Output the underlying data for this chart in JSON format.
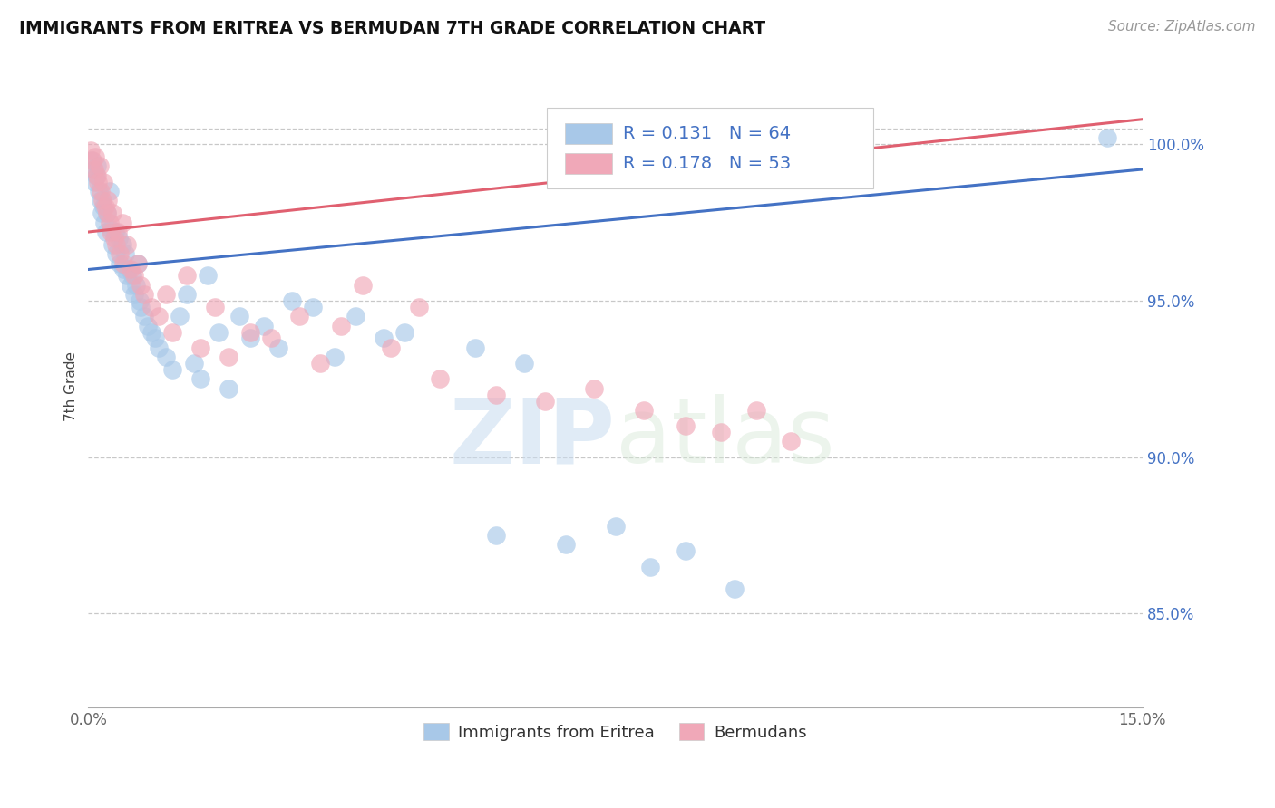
{
  "title": "IMMIGRANTS FROM ERITREA VS BERMUDAN 7TH GRADE CORRELATION CHART",
  "source_text": "Source: ZipAtlas.com",
  "ylabel": "7th Grade",
  "xmin": 0.0,
  "xmax": 15.0,
  "ymin": 82.0,
  "ymax": 102.5,
  "yticks": [
    85.0,
    90.0,
    95.0,
    100.0
  ],
  "ytick_labels": [
    "85.0%",
    "90.0%",
    "95.0%",
    "100.0%"
  ],
  "blue_color": "#A8C8E8",
  "pink_color": "#F0A8B8",
  "blue_line_color": "#4472C4",
  "pink_line_color": "#E06070",
  "R_blue": 0.131,
  "N_blue": 64,
  "R_pink": 0.178,
  "N_pink": 53,
  "legend_blue_label": "Immigrants from Eritrea",
  "legend_pink_label": "Bermudans",
  "watermark_zip": "ZIP",
  "watermark_atlas": "atlas",
  "blue_line_y0": 96.0,
  "blue_line_y1": 99.2,
  "pink_line_y0": 97.2,
  "pink_line_y1": 100.8,
  "blue_x": [
    0.05,
    0.07,
    0.09,
    0.11,
    0.13,
    0.15,
    0.17,
    0.19,
    0.21,
    0.23,
    0.25,
    0.27,
    0.3,
    0.32,
    0.35,
    0.38,
    0.4,
    0.43,
    0.45,
    0.48,
    0.5,
    0.53,
    0.55,
    0.58,
    0.6,
    0.63,
    0.65,
    0.68,
    0.7,
    0.73,
    0.75,
    0.8,
    0.85,
    0.9,
    0.95,
    1.0,
    1.1,
    1.2,
    1.3,
    1.4,
    1.5,
    1.6,
    1.7,
    1.85,
    2.0,
    2.15,
    2.3,
    2.5,
    2.7,
    2.9,
    3.2,
    3.5,
    3.8,
    4.2,
    4.5,
    5.5,
    5.8,
    6.2,
    6.8,
    7.5,
    8.0,
    8.5,
    9.2,
    14.5
  ],
  "blue_y": [
    99.5,
    99.2,
    98.8,
    99.0,
    99.3,
    98.5,
    98.2,
    97.8,
    98.0,
    97.5,
    97.2,
    97.8,
    98.5,
    97.3,
    96.8,
    97.2,
    96.5,
    97.0,
    96.2,
    96.8,
    96.0,
    96.5,
    95.8,
    96.0,
    95.5,
    95.8,
    95.2,
    95.5,
    96.2,
    95.0,
    94.8,
    94.5,
    94.2,
    94.0,
    93.8,
    93.5,
    93.2,
    92.8,
    94.5,
    95.2,
    93.0,
    92.5,
    95.8,
    94.0,
    92.2,
    94.5,
    93.8,
    94.2,
    93.5,
    95.0,
    94.8,
    93.2,
    94.5,
    93.8,
    94.0,
    93.5,
    87.5,
    93.0,
    87.2,
    87.8,
    86.5,
    87.0,
    85.8,
    100.2
  ],
  "pink_x": [
    0.04,
    0.06,
    0.08,
    0.1,
    0.12,
    0.14,
    0.16,
    0.18,
    0.2,
    0.22,
    0.24,
    0.26,
    0.28,
    0.3,
    0.32,
    0.35,
    0.37,
    0.4,
    0.42,
    0.45,
    0.48,
    0.5,
    0.55,
    0.6,
    0.65,
    0.7,
    0.75,
    0.8,
    0.9,
    1.0,
    1.1,
    1.2,
    1.4,
    1.6,
    1.8,
    2.0,
    2.3,
    2.6,
    3.0,
    3.3,
    3.6,
    3.9,
    4.3,
    4.7,
    5.0,
    5.8,
    6.5,
    7.2,
    7.9,
    8.5,
    9.0,
    9.5,
    10.0
  ],
  "pink_y": [
    99.8,
    99.5,
    99.2,
    99.6,
    99.0,
    98.8,
    99.3,
    98.5,
    98.2,
    98.8,
    98.0,
    97.8,
    98.2,
    97.5,
    97.2,
    97.8,
    97.0,
    96.8,
    97.2,
    96.5,
    97.5,
    96.2,
    96.8,
    96.0,
    95.8,
    96.2,
    95.5,
    95.2,
    94.8,
    94.5,
    95.2,
    94.0,
    95.8,
    93.5,
    94.8,
    93.2,
    94.0,
    93.8,
    94.5,
    93.0,
    94.2,
    95.5,
    93.5,
    94.8,
    92.5,
    92.0,
    91.8,
    92.2,
    91.5,
    91.0,
    90.8,
    91.5,
    90.5
  ]
}
